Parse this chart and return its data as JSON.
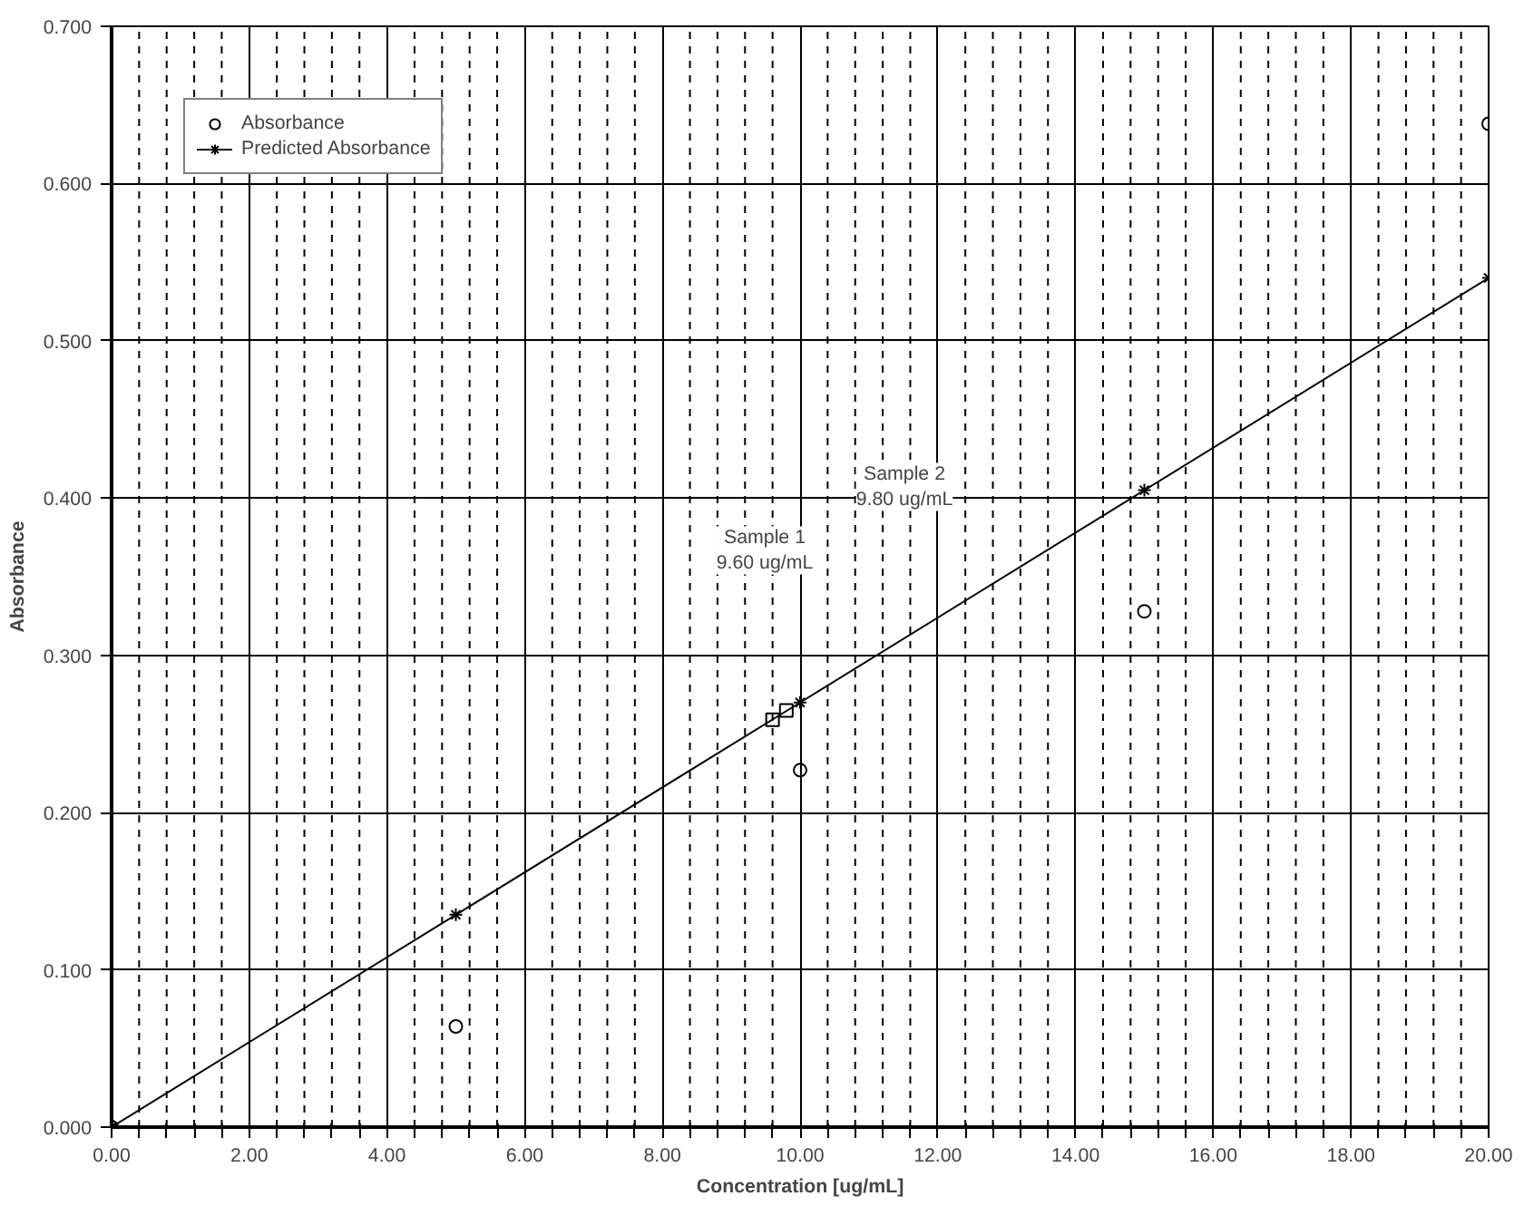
{
  "chart_data": {
    "type": "scatter",
    "xlabel": "Concentration [ug/mL]",
    "ylabel": "Absorbance",
    "xlim": [
      0,
      20
    ],
    "ylim": [
      0,
      0.7
    ],
    "xticks": [
      {
        "value": 0,
        "label": "0.00"
      },
      {
        "value": 0.4,
        "label": null
      },
      {
        "value": 0.8,
        "label": null
      },
      {
        "value": 1.2,
        "label": null
      },
      {
        "value": 1.6,
        "label": null
      },
      {
        "value": 2,
        "label": "2.00"
      },
      {
        "value": 2.4,
        "label": null
      },
      {
        "value": 2.8,
        "label": null
      },
      {
        "value": 3.2,
        "label": null
      },
      {
        "value": 3.6,
        "label": null
      },
      {
        "value": 4,
        "label": "4.00"
      },
      {
        "value": 4.4,
        "label": null
      },
      {
        "value": 4.8,
        "label": null
      },
      {
        "value": 5.2,
        "label": null
      },
      {
        "value": 5.6,
        "label": null
      },
      {
        "value": 6,
        "label": "6.00"
      },
      {
        "value": 6.4,
        "label": null
      },
      {
        "value": 6.8,
        "label": null
      },
      {
        "value": 7.2,
        "label": null
      },
      {
        "value": 7.6,
        "label": null
      },
      {
        "value": 8,
        "label": "8.00"
      },
      {
        "value": 8.4,
        "label": null
      },
      {
        "value": 8.8,
        "label": null
      },
      {
        "value": 9.2,
        "label": null
      },
      {
        "value": 9.6,
        "label": null
      },
      {
        "value": 10,
        "label": "10.00"
      },
      {
        "value": 10.4,
        "label": null
      },
      {
        "value": 10.8,
        "label": null
      },
      {
        "value": 11.2,
        "label": null
      },
      {
        "value": 11.6,
        "label": null
      },
      {
        "value": 12,
        "label": "12.00"
      },
      {
        "value": 12.4,
        "label": null
      },
      {
        "value": 12.8,
        "label": null
      },
      {
        "value": 13.2,
        "label": null
      },
      {
        "value": 13.6,
        "label": null
      },
      {
        "value": 14,
        "label": "14.00"
      },
      {
        "value": 14.4,
        "label": null
      },
      {
        "value": 14.8,
        "label": null
      },
      {
        "value": 15.2,
        "label": null
      },
      {
        "value": 15.6,
        "label": null
      },
      {
        "value": 16,
        "label": "16.00"
      },
      {
        "value": 16.4,
        "label": null
      },
      {
        "value": 16.8,
        "label": null
      },
      {
        "value": 17.2,
        "label": null
      },
      {
        "value": 17.6,
        "label": null
      },
      {
        "value": 18,
        "label": "18.00"
      },
      {
        "value": 18.4,
        "label": null
      },
      {
        "value": 18.8,
        "label": null
      },
      {
        "value": 19.2,
        "label": null
      },
      {
        "value": 19.6,
        "label": null
      },
      {
        "value": 20,
        "label": "20.00"
      }
    ],
    "yticks": [
      {
        "value": 0,
        "label": "0.000"
      },
      {
        "value": 0.1,
        "label": "0.100"
      },
      {
        "value": 0.2,
        "label": "0.200"
      },
      {
        "value": 0.3,
        "label": "0.300"
      },
      {
        "value": 0.4,
        "label": "0.400"
      },
      {
        "value": 0.5,
        "label": "0.500"
      },
      {
        "value": 0.6,
        "label": "0.600"
      },
      {
        "value": 0.7,
        "label": "0.700"
      }
    ],
    "grid": true,
    "legend": "top left",
    "series": [
      {
        "name": "Absorbance",
        "marker": "circle",
        "color": "#000000",
        "x": [
          0,
          5,
          10,
          15,
          20
        ],
        "values": [
          0,
          0.064,
          0.227,
          0.328,
          0.638
        ]
      },
      {
        "name": "Predicted Absorbance",
        "type": "line",
        "marker": "cross",
        "line_style": "solid",
        "color": "#000000",
        "x": [
          0,
          5,
          10,
          15,
          20
        ],
        "values": [
          0,
          0.135,
          0.27,
          0.405,
          0.54
        ]
      },
      {
        "marker": "square",
        "color": "#000000",
        "x": [
          9.6,
          9.8
        ],
        "values": [
          0.259,
          0.265
        ]
      }
    ],
    "annotations": [
      "Sample 1\n9.60 ug/mL",
      "Sample 2\n9.80 ug/mL"
    ]
  }
}
